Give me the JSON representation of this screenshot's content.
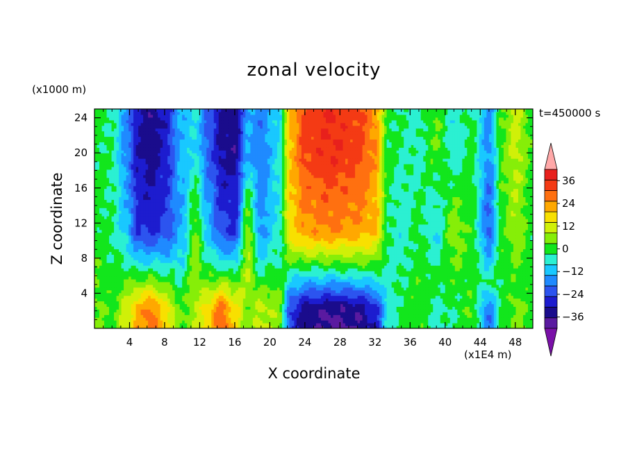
{
  "chart_data": {
    "type": "heatmap",
    "title": "zonal velocity",
    "xlabel": "X coordinate",
    "ylabel": "Z coordinate",
    "x_unit_label": "(x1E4 m)",
    "y_unit_label": "(x1000 m)",
    "time_label": "t=450000 s",
    "xlim": [
      0,
      50
    ],
    "ylim": [
      0,
      25
    ],
    "x_ticks": [
      4,
      8,
      12,
      16,
      20,
      24,
      28,
      32,
      36,
      40,
      44,
      48
    ],
    "y_ticks": [
      4,
      8,
      12,
      16,
      20,
      24
    ],
    "colorbar": {
      "ticks": [
        36,
        24,
        12,
        0,
        -12,
        -24,
        -36
      ],
      "levels": [
        -42,
        -36,
        -30,
        -24,
        -18,
        -12,
        -6,
        0,
        6,
        12,
        18,
        24,
        30,
        36,
        42
      ],
      "colors": [
        "#7a10a8",
        "#5a1aa0",
        "#1a0c8c",
        "#1d1ccf",
        "#2c54ef",
        "#1f8aff",
        "#19c8ff",
        "#2bf0d2",
        "#12e61c",
        "#86ee08",
        "#d0f008",
        "#f8e000",
        "#ffa800",
        "#ff7010",
        "#f43a14",
        "#e8201c",
        "#ffa8a8"
      ]
    },
    "columns": [
      {
        "x": 0,
        "top": 2,
        "mid": 3,
        "low": 6,
        "bottom": 7
      },
      {
        "x": 2,
        "top": 0,
        "mid": 0,
        "low": 2,
        "bottom": 5
      },
      {
        "x": 3.5,
        "top": -14,
        "mid": -8,
        "low": 6,
        "bottom": 14
      },
      {
        "x": 5,
        "top": -30,
        "mid": -24,
        "low": 6,
        "bottom": 28
      },
      {
        "x": 6.5,
        "top": -34,
        "mid": -26,
        "low": 8,
        "bottom": 34
      },
      {
        "x": 8,
        "top": -28,
        "mid": -22,
        "low": 4,
        "bottom": 22
      },
      {
        "x": 10,
        "top": -10,
        "mid": -12,
        "low": 0,
        "bottom": 6
      },
      {
        "x": 11.5,
        "top": -6,
        "mid": 8,
        "low": 10,
        "bottom": 12
      },
      {
        "x": 13,
        "top": -20,
        "mid": -10,
        "low": 6,
        "bottom": 24
      },
      {
        "x": 14.5,
        "top": -32,
        "mid": -22,
        "low": 8,
        "bottom": 36
      },
      {
        "x": 16,
        "top": -34,
        "mid": -24,
        "low": 6,
        "bottom": 22
      },
      {
        "x": 17.5,
        "top": -12,
        "mid": 10,
        "low": 12,
        "bottom": 8
      },
      {
        "x": 19,
        "top": -16,
        "mid": -14,
        "low": 2,
        "bottom": 14
      },
      {
        "x": 21,
        "top": -6,
        "mid": -4,
        "low": 4,
        "bottom": 10
      },
      {
        "x": 22.5,
        "top": 26,
        "mid": 22,
        "low": -6,
        "bottom": -26
      },
      {
        "x": 24,
        "top": 38,
        "mid": 28,
        "low": -10,
        "bottom": -34
      },
      {
        "x": 27,
        "top": 42,
        "mid": 30,
        "low": -10,
        "bottom": -38
      },
      {
        "x": 30,
        "top": 38,
        "mid": 28,
        "low": -8,
        "bottom": -36
      },
      {
        "x": 32,
        "top": 30,
        "mid": 24,
        "low": -6,
        "bottom": -28
      },
      {
        "x": 33.5,
        "top": 2,
        "mid": 0,
        "low": -2,
        "bottom": -6
      },
      {
        "x": 35,
        "top": 0,
        "mid": -4,
        "low": 0,
        "bottom": 2
      },
      {
        "x": 37,
        "top": -2,
        "mid": 2,
        "low": 4,
        "bottom": 4
      },
      {
        "x": 39,
        "top": 6,
        "mid": -6,
        "low": 2,
        "bottom": -2
      },
      {
        "x": 41,
        "top": -4,
        "mid": 10,
        "low": 4,
        "bottom": 0
      },
      {
        "x": 43,
        "top": 2,
        "mid": 4,
        "low": 2,
        "bottom": 6
      },
      {
        "x": 45,
        "top": -14,
        "mid": -20,
        "low": 0,
        "bottom": -18
      },
      {
        "x": 46.5,
        "top": 6,
        "mid": 4,
        "low": 2,
        "bottom": 2
      },
      {
        "x": 48,
        "top": 14,
        "mid": 10,
        "low": 4,
        "bottom": 8
      },
      {
        "x": 50,
        "top": 4,
        "mid": 2,
        "low": 2,
        "bottom": 4
      }
    ]
  }
}
